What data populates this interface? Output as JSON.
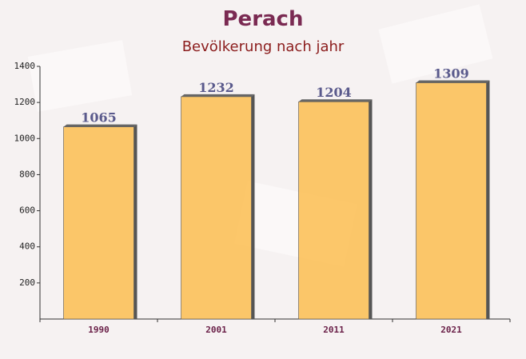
{
  "chart_data": {
    "type": "bar",
    "title": "Perach",
    "subtitle": "Bevölkerung nach jahr",
    "categories": [
      "1990",
      "2001",
      "2011",
      "2021"
    ],
    "values": [
      1065,
      1232,
      1204,
      1309
    ],
    "color": "#fcc15a",
    "ylim": [
      0,
      1400
    ],
    "yticks": [
      200,
      400,
      600,
      800,
      1000,
      1200,
      1400
    ]
  }
}
